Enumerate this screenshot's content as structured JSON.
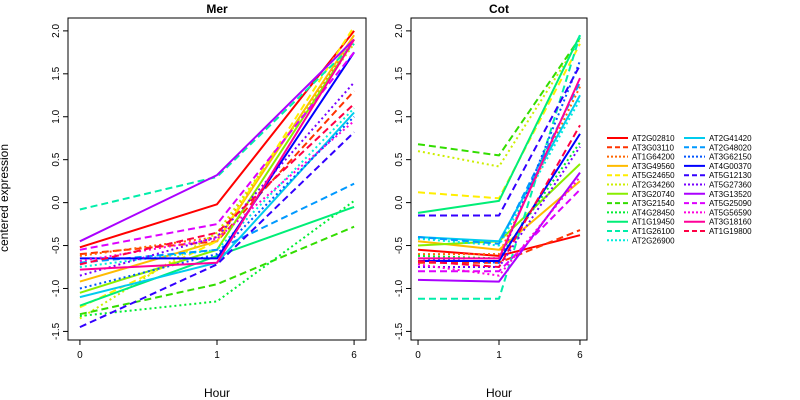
{
  "chart_data": {
    "type": "line",
    "ylabel": "centered expression",
    "x_categories": [
      "0",
      "1",
      "6"
    ],
    "y_ticks": [
      "-1.5",
      "-1.0",
      "-0.5",
      "0.0",
      "0.5",
      "1.0",
      "1.5",
      "2.0"
    ],
    "ylim": [
      -1.6,
      2.15
    ],
    "grid": false,
    "legend_position": "right",
    "panels": [
      {
        "title": "Mer",
        "xlabel": "Hour",
        "series": [
          {
            "name": "AT2G02810",
            "color": "#ff0000",
            "dash": "solid",
            "values": [
              -0.52,
              -0.02,
              2.0
            ]
          },
          {
            "name": "AT3G03110",
            "color": "#ff3300",
            "dash": "dashed",
            "values": [
              -0.6,
              -0.45,
              1.3
            ]
          },
          {
            "name": "AT1G64200",
            "color": "#ff6600",
            "dash": "dotted",
            "values": [
              -0.62,
              -0.4,
              1.9
            ]
          },
          {
            "name": "AT3G49560",
            "color": "#ffbb00",
            "dash": "solid",
            "values": [
              -0.92,
              -0.45,
              1.95
            ]
          },
          {
            "name": "AT5G24650",
            "color": "#ffee00",
            "dash": "dashed",
            "values": [
              -1.22,
              -0.45,
              2.05
            ]
          },
          {
            "name": "AT2G34260",
            "color": "#ccee00",
            "dash": "dotted",
            "values": [
              -1.35,
              -0.35,
              1.85
            ]
          },
          {
            "name": "AT3G20740",
            "color": "#88ee00",
            "dash": "solid",
            "values": [
              -1.05,
              -0.55,
              1.9
            ]
          },
          {
            "name": "AT3G21540",
            "color": "#33dd00",
            "dash": "dashed",
            "values": [
              -1.3,
              -0.95,
              -0.28
            ]
          },
          {
            "name": "AT4G28450",
            "color": "#00ee33",
            "dash": "dotted",
            "values": [
              -1.32,
              -1.15,
              0.02
            ]
          },
          {
            "name": "AT1G19450",
            "color": "#00ee77",
            "dash": "solid",
            "values": [
              -1.2,
              -0.62,
              -0.05
            ]
          },
          {
            "name": "AT1G26100",
            "color": "#00eeaa",
            "dash": "dashed",
            "values": [
              -0.08,
              0.3,
              1.85
            ]
          },
          {
            "name": "AT2G26900",
            "color": "#00eedd",
            "dash": "dotted",
            "values": [
              -0.75,
              -0.55,
              1.1
            ]
          },
          {
            "name": "AT2G41420",
            "color": "#00ccee",
            "dash": "solid",
            "values": [
              -1.1,
              -0.7,
              1.05
            ]
          },
          {
            "name": "AT2G48020",
            "color": "#0099ff",
            "dash": "dashed",
            "values": [
              -0.7,
              -0.55,
              0.22
            ]
          },
          {
            "name": "AT3G62150",
            "color": "#0055ff",
            "dash": "dotted",
            "values": [
              -1.0,
              -0.6,
              1.0
            ]
          },
          {
            "name": "AT4G00370",
            "color": "#0000ff",
            "dash": "solid",
            "values": [
              -0.65,
              -0.65,
              1.75
            ]
          },
          {
            "name": "AT5G12130",
            "color": "#3300ff",
            "dash": "dashed",
            "values": [
              -1.45,
              -0.72,
              0.82
            ]
          },
          {
            "name": "AT5G27360",
            "color": "#7700ff",
            "dash": "dotted",
            "values": [
              -0.85,
              -0.4,
              1.4
            ]
          },
          {
            "name": "AT3G13520",
            "color": "#aa00ff",
            "dash": "solid",
            "values": [
              -0.45,
              0.32,
              1.9
            ]
          },
          {
            "name": "AT5G25090",
            "color": "#dd00ff",
            "dash": "dashed",
            "values": [
              -0.55,
              -0.25,
              1.75
            ]
          },
          {
            "name": "AT5G56590",
            "color": "#ff00dd",
            "dash": "dotted",
            "values": [
              -0.68,
              -0.42,
              0.95
            ]
          },
          {
            "name": "AT3G18160",
            "color": "#ff0099",
            "dash": "solid",
            "values": [
              -0.78,
              -0.7,
              1.9
            ]
          },
          {
            "name": "AT1G19800",
            "color": "#ff0044",
            "dash": "dashed",
            "values": [
              -0.72,
              -0.35,
              1.15
            ]
          }
        ]
      },
      {
        "title": "Cot",
        "xlabel": "Hour",
        "series": [
          {
            "name": "AT2G02810",
            "color": "#ff0000",
            "dash": "solid",
            "values": [
              -0.55,
              -0.62,
              -0.38
            ]
          },
          {
            "name": "AT3G03110",
            "color": "#ff3300",
            "dash": "dashed",
            "values": [
              -0.7,
              -0.7,
              -0.32
            ]
          },
          {
            "name": "AT1G64200",
            "color": "#ff6600",
            "dash": "dotted",
            "values": [
              -0.6,
              -0.6,
              1.35
            ]
          },
          {
            "name": "AT3G49560",
            "color": "#ffbb00",
            "dash": "solid",
            "values": [
              -0.45,
              -0.55,
              0.25
            ]
          },
          {
            "name": "AT5G24650",
            "color": "#ffee00",
            "dash": "dashed",
            "values": [
              0.12,
              0.05,
              1.85
            ]
          },
          {
            "name": "AT2G34260",
            "color": "#ccee00",
            "dash": "dotted",
            "values": [
              0.6,
              0.42,
              1.9
            ]
          },
          {
            "name": "AT3G20740",
            "color": "#88ee00",
            "dash": "solid",
            "values": [
              -0.5,
              -0.45,
              0.45
            ]
          },
          {
            "name": "AT3G21540",
            "color": "#33dd00",
            "dash": "dashed",
            "values": [
              0.68,
              0.55,
              1.92
            ]
          },
          {
            "name": "AT4G28450",
            "color": "#00ee33",
            "dash": "dotted",
            "values": [
              -0.62,
              -0.65,
              0.7
            ]
          },
          {
            "name": "AT1G19450",
            "color": "#00ee77",
            "dash": "solid",
            "values": [
              -0.12,
              0.02,
              1.95
            ]
          },
          {
            "name": "AT1G26100",
            "color": "#00eeaa",
            "dash": "dashed",
            "values": [
              -1.12,
              -1.12,
              1.95
            ]
          },
          {
            "name": "AT2G26900",
            "color": "#00eedd",
            "dash": "dotted",
            "values": [
              -0.42,
              -0.5,
              1.2
            ]
          },
          {
            "name": "AT2G41420",
            "color": "#00ccee",
            "dash": "solid",
            "values": [
              -0.4,
              -0.45,
              1.25
            ]
          },
          {
            "name": "AT2G48020",
            "color": "#0099ff",
            "dash": "dashed",
            "values": [
              -0.4,
              -0.48,
              1.4
            ]
          },
          {
            "name": "AT3G62150",
            "color": "#0055ff",
            "dash": "dotted",
            "values": [
              -0.65,
              -0.7,
              1.65
            ]
          },
          {
            "name": "AT4G00370",
            "color": "#0000ff",
            "dash": "solid",
            "values": [
              -0.68,
              -0.68,
              0.8
            ]
          },
          {
            "name": "AT5G12130",
            "color": "#3300ff",
            "dash": "dashed",
            "values": [
              -0.15,
              -0.15,
              1.6
            ]
          },
          {
            "name": "AT5G27360",
            "color": "#7700ff",
            "dash": "dotted",
            "values": [
              -0.75,
              -0.75,
              0.65
            ]
          },
          {
            "name": "AT3G13520",
            "color": "#aa00ff",
            "dash": "solid",
            "values": [
              -0.9,
              -0.92,
              0.35
            ]
          },
          {
            "name": "AT5G25090",
            "color": "#dd00ff",
            "dash": "dashed",
            "values": [
              -0.8,
              -0.8,
              0.15
            ]
          },
          {
            "name": "AT5G56590",
            "color": "#ff00dd",
            "dash": "dotted",
            "values": [
              -0.72,
              -0.85,
              0.3
            ]
          },
          {
            "name": "AT3G18160",
            "color": "#ff0099",
            "dash": "solid",
            "values": [
              -0.65,
              -0.65,
              1.45
            ]
          },
          {
            "name": "AT1G19800",
            "color": "#ff0044",
            "dash": "dashed",
            "values": [
              -0.68,
              -0.75,
              0.9
            ]
          }
        ]
      }
    ]
  }
}
